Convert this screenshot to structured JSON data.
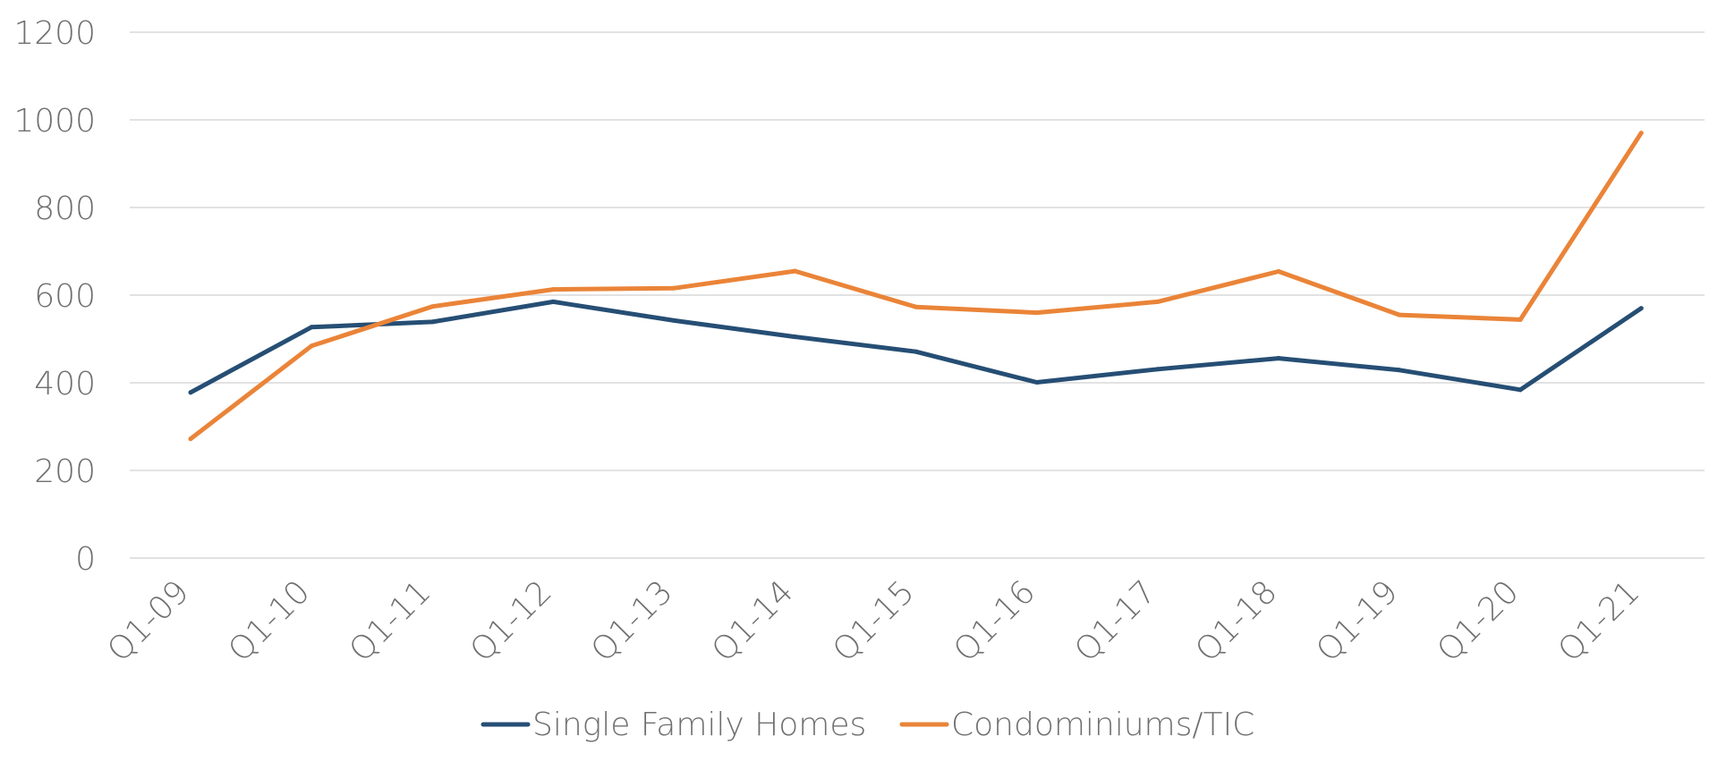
{
  "chart_data": {
    "type": "line",
    "title": "",
    "xlabel": "",
    "ylabel": "",
    "categories": [
      "Q1-09",
      "Q1-10",
      "Q1-11",
      "Q1-12",
      "Q1-13",
      "Q1-14",
      "Q1-15",
      "Q1-16",
      "Q1-17",
      "Q1-18",
      "Q1-19",
      "Q1-20",
      "Q1-21"
    ],
    "ylim": [
      0,
      1200
    ],
    "yticks": [
      0,
      200,
      400,
      600,
      800,
      1000,
      1200
    ],
    "grid": true,
    "legend_position": "bottom",
    "series": [
      {
        "name": "Single Family Homes",
        "color": "#264e74",
        "values": [
          378,
          527,
          539,
          585,
          542,
          505,
          471,
          401,
          431,
          456,
          429,
          384,
          570
        ]
      },
      {
        "name": "Condominiums/TIC",
        "color": "#ea8438",
        "values": [
          272,
          484,
          574,
          613,
          616,
          655,
          573,
          560,
          585,
          654,
          555,
          544,
          970
        ]
      }
    ]
  }
}
